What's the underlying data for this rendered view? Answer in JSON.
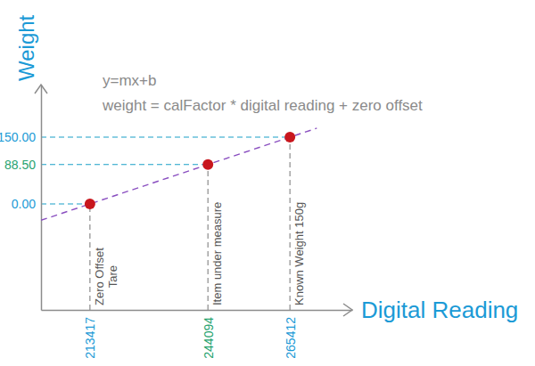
{
  "chart_data": {
    "type": "scatter",
    "title": "y=mx+b",
    "subtitle": "weight = calFactor * digital reading + zero offset",
    "x_label": "Digital Reading",
    "y_label": "Weight",
    "x": [
      213417,
      244094,
      265412
    ],
    "series": [
      {
        "type": "scatter",
        "color": "#c8161d",
        "marker": "circle",
        "values": [
          0,
          88.5,
          150
        ]
      },
      {
        "type": "line",
        "color": "#8a4fc0",
        "line_style": "dashed",
        "x": [
          200700,
          272400
        ],
        "values": [
          -36.7,
          170.1
        ]
      }
    ],
    "annotations": [
      [
        "Zero Offset",
        "Tare"
      ],
      [
        "Item under measure"
      ],
      [
        "Known Weight 150g"
      ]
    ],
    "xlim": [
      200700,
      281600
    ],
    "ylim": [
      -238,
      268
    ],
    "xticks": [
      213417,
      244094,
      265412
    ],
    "yticks": [
      {
        "value": 0,
        "label": "0.00"
      },
      {
        "value": 88.5,
        "label": "88.50"
      },
      {
        "value": 150,
        "label": "150.00"
      }
    ],
    "grid": true
  }
}
